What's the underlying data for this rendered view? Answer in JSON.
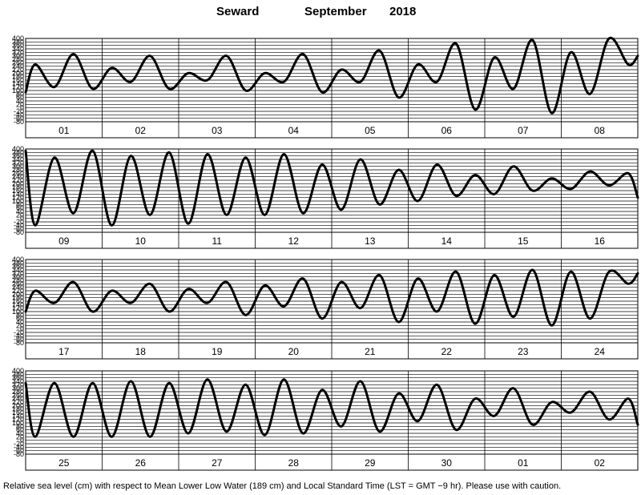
{
  "header": {
    "station": "Seward",
    "month": "September",
    "year": "2018"
  },
  "footnote": "Relative sea level (cm) with respect to Mean Lower Low Water (189 cm) and Local Standard Time (LST = GMT −9 hr). Please use with caution.",
  "chart_data": {
    "type": "line",
    "title": "Seward September 2018",
    "ylabel": "",
    "xlabel": "",
    "ylim": [
      -80,
      400
    ],
    "y_ticks": [
      400,
      380,
      360,
      340,
      320,
      300,
      280,
      260,
      240,
      220,
      200,
      180,
      160,
      140,
      120,
      100,
      80,
      60,
      40,
      20,
      0,
      -20,
      -40,
      -60,
      -80
    ],
    "grid": true,
    "rows": [
      {
        "day_labels": [
          "01",
          "02",
          "03",
          "04",
          "05",
          "06",
          "07",
          "08"
        ],
        "x_hours": [
          0,
          3,
          9,
          15,
          21,
          27,
          33,
          39,
          45,
          51,
          57,
          63,
          69,
          75,
          81,
          87,
          93,
          99,
          105,
          111,
          117,
          123,
          129,
          135,
          141,
          147,
          153,
          159,
          165,
          171,
          177,
          183,
          189,
          192
        ],
        "values": [
          90,
          250,
          120,
          310,
          110,
          230,
          150,
          300,
          110,
          200,
          160,
          300,
          100,
          200,
          150,
          310,
          90,
          220,
          150,
          330,
          60,
          250,
          150,
          370,
          -10,
          290,
          110,
          390,
          -30,
          320,
          80,
          400,
          250,
          300
        ]
      },
      {
        "day_labels": [
          "09",
          "10",
          "11",
          "12",
          "13",
          "14",
          "15",
          "16"
        ],
        "x_hours": [
          0,
          3,
          9,
          15,
          21,
          27,
          33,
          39,
          45,
          51,
          57,
          63,
          69,
          75,
          81,
          87,
          93,
          99,
          105,
          111,
          117,
          123,
          129,
          135,
          141,
          147,
          153,
          159,
          165,
          171,
          177,
          183,
          189,
          192
        ],
        "values": [
          390,
          -40,
          350,
          30,
          390,
          -40,
          360,
          20,
          380,
          -30,
          370,
          20,
          350,
          20,
          370,
          30,
          310,
          50,
          340,
          80,
          280,
          100,
          310,
          130,
          250,
          140,
          300,
          160,
          230,
          170,
          270,
          190,
          260,
          120
        ]
      },
      {
        "day_labels": [
          "17",
          "18",
          "19",
          "20",
          "21",
          "22",
          "23",
          "24"
        ],
        "x_hours": [
          0,
          3,
          9,
          15,
          21,
          27,
          33,
          39,
          45,
          51,
          57,
          63,
          69,
          75,
          81,
          87,
          93,
          99,
          105,
          111,
          117,
          123,
          129,
          135,
          141,
          147,
          153,
          159,
          165,
          171,
          177,
          183,
          189,
          192
        ],
        "values": [
          100,
          220,
          150,
          270,
          100,
          220,
          150,
          260,
          100,
          230,
          150,
          270,
          80,
          250,
          130,
          290,
          60,
          270,
          120,
          310,
          40,
          290,
          100,
          330,
          30,
          310,
          70,
          340,
          20,
          330,
          60,
          330,
          260,
          320
        ]
      },
      {
        "day_labels": [
          "25",
          "26",
          "27",
          "28",
          "29",
          "30",
          "01",
          "02"
        ],
        "x_hours": [
          0,
          3,
          9,
          15,
          21,
          27,
          33,
          39,
          45,
          51,
          57,
          63,
          69,
          75,
          81,
          87,
          93,
          99,
          105,
          111,
          117,
          123,
          129,
          135,
          141,
          147,
          153,
          159,
          165,
          171,
          177,
          183,
          189,
          192
        ],
        "values": [
          330,
          20,
          330,
          20,
          330,
          20,
          340,
          20,
          330,
          40,
          350,
          50,
          320,
          30,
          350,
          40,
          290,
          80,
          340,
          50,
          270,
          110,
          320,
          60,
          240,
          140,
          300,
          90,
          220,
          160,
          280,
          120,
          240,
          90
        ]
      }
    ]
  }
}
